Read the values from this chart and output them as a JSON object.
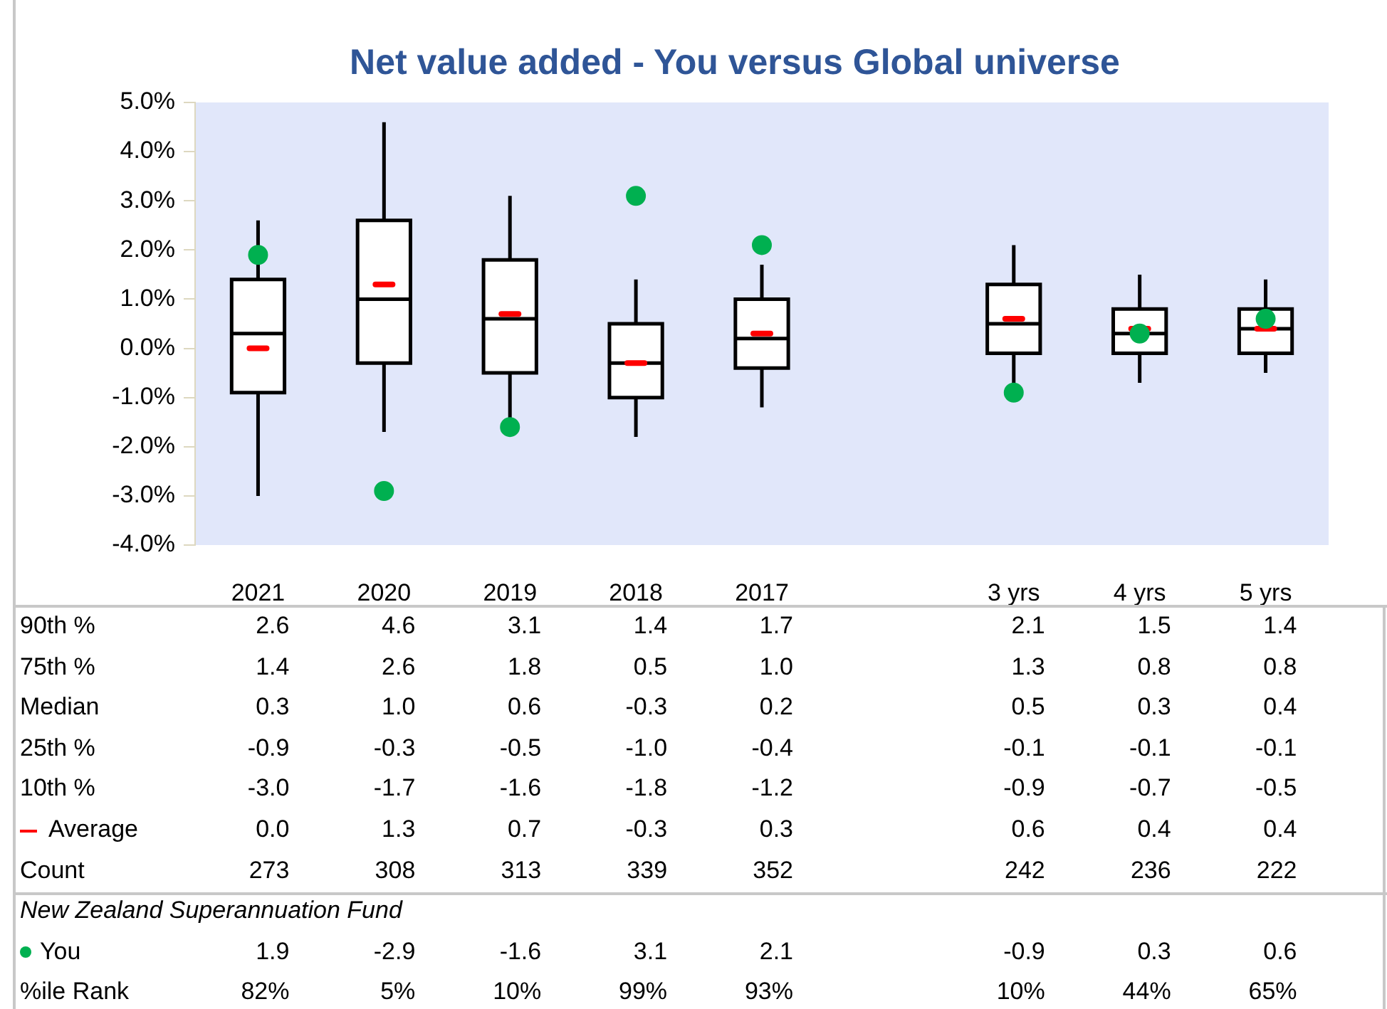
{
  "chart_data": {
    "type": "box",
    "title": "Net value added - You versus Global universe",
    "categories": [
      "2021",
      "2020",
      "2019",
      "2018",
      "2017",
      null,
      "3 yrs",
      "4 yrs",
      "5 yrs"
    ],
    "ylim": [
      -4,
      5
    ],
    "yticks": [
      {
        "value": -4,
        "label": "-4.0%"
      },
      {
        "value": -3,
        "label": "-3.0%"
      },
      {
        "value": -2,
        "label": "-2.0%"
      },
      {
        "value": -1,
        "label": "-1.0%"
      },
      {
        "value": 0,
        "label": "0.0%"
      },
      {
        "value": 1,
        "label": "1.0%"
      },
      {
        "value": 2,
        "label": "2.0%"
      },
      {
        "value": 3,
        "label": "3.0%"
      },
      {
        "value": 4,
        "label": "4.0%"
      },
      {
        "value": 5,
        "label": "5.0%"
      }
    ],
    "boxes": [
      {
        "low": -3.0,
        "q1": -0.9,
        "median": 0.3,
        "q3": 1.4,
        "high": 2.6,
        "mean": 0.0
      },
      {
        "low": -1.7,
        "q1": -0.3,
        "median": 1.0,
        "q3": 2.6,
        "high": 4.6,
        "mean": 1.3
      },
      {
        "low": -1.6,
        "q1": -0.5,
        "median": 0.6,
        "q3": 1.8,
        "high": 3.1,
        "mean": 0.7
      },
      {
        "low": -1.8,
        "q1": -1.0,
        "median": -0.3,
        "q3": 0.5,
        "high": 1.4,
        "mean": -0.3
      },
      {
        "low": -1.2,
        "q1": -0.4,
        "median": 0.2,
        "q3": 1.0,
        "high": 1.7,
        "mean": 0.3
      },
      null,
      {
        "low": -0.9,
        "q1": -0.1,
        "median": 0.5,
        "q3": 1.3,
        "high": 2.1,
        "mean": 0.6
      },
      {
        "low": -0.7,
        "q1": -0.1,
        "median": 0.3,
        "q3": 0.8,
        "high": 1.5,
        "mean": 0.4
      },
      {
        "low": -0.5,
        "q1": -0.1,
        "median": 0.4,
        "q3": 0.8,
        "high": 1.4,
        "mean": 0.4
      }
    ],
    "series": [
      {
        "type": "scatter",
        "name": "You",
        "color": "#00b050",
        "values": [
          1.9,
          -2.9,
          -1.6,
          3.1,
          2.1,
          null,
          -0.9,
          0.3,
          0.6
        ]
      }
    ],
    "data_labels": true,
    "marker": "circle",
    "annotations": [
      "90th %",
      "2.6",
      "4.6",
      "3.1",
      "1.4",
      "1.7",
      "2.1",
      "1.5",
      "1.4",
      "75th %",
      "1.4",
      "2.6",
      "1.8",
      "0.5",
      "1.0",
      "1.3",
      "0.8",
      "0.8",
      "Median",
      "0.3",
      "1.0",
      "0.6",
      "-0.3",
      "0.2",
      "0.5",
      "0.3",
      "0.4",
      "25th %",
      "-0.9",
      "-0.3",
      "-0.5",
      "-1.0",
      "-0.4",
      "-0.1",
      "-0.1",
      "-0.1",
      "10th %",
      "-3.0",
      "-1.7",
      "-1.6",
      "-1.8",
      "-1.2",
      "-0.9",
      "-0.7",
      "-0.5",
      "Average",
      "0.0",
      "1.3",
      "0.7",
      "-0.3",
      "0.3",
      "0.6",
      "0.4",
      "0.4",
      "Count",
      "273",
      "308",
      "313",
      "339",
      "352",
      "242",
      "236",
      "222",
      "New Zealand Superannuation Fund",
      "%ile Rank",
      "82%",
      "5%",
      "10%",
      "99%",
      "93%",
      "10%",
      "44%",
      "65%"
    ]
  }
}
